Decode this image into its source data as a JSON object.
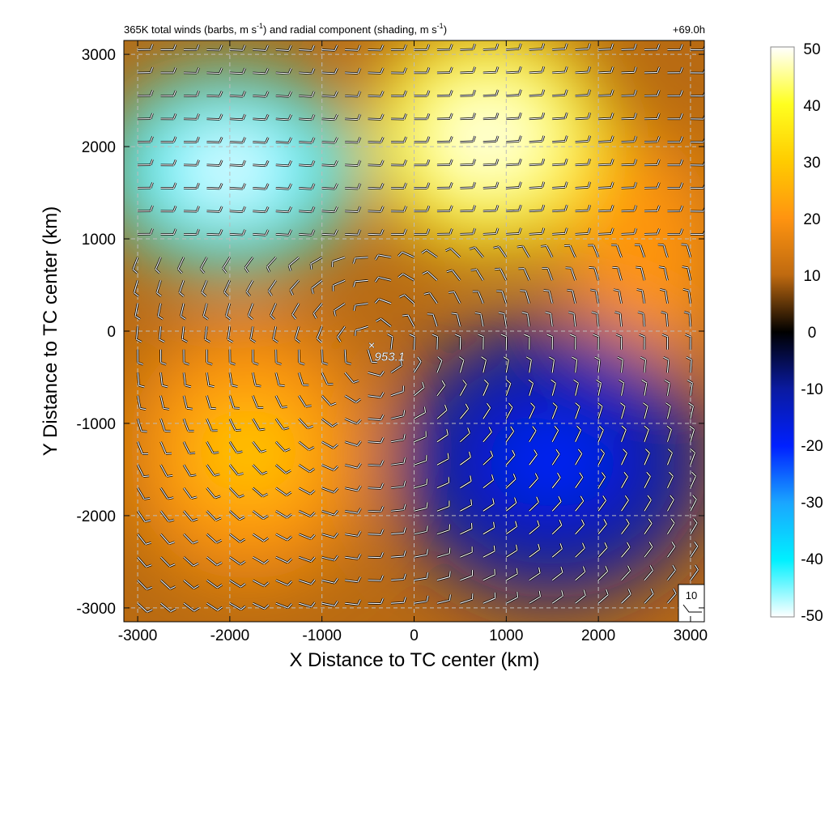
{
  "chart_data": {
    "type": "heatmap",
    "title_main": "365K total winds (barbs, m s",
    "title_unit_exp": "-1",
    "title_mid": ") and radial component (shading, m s",
    "title_end": ")",
    "time_label": "+69.0h",
    "xlabel": "X Distance to TC center (km)",
    "ylabel": "Y Distance to TC center (km)",
    "xlim": [
      -3150,
      3150
    ],
    "ylim": [
      -3150,
      3150
    ],
    "xticks": [
      -3000,
      -2000,
      -1000,
      0,
      1000,
      2000,
      3000
    ],
    "yticks": [
      -3000,
      -2000,
      -1000,
      0,
      1000,
      2000,
      3000
    ],
    "xtick_labels": [
      "-3000",
      "-2000",
      "-1000",
      "0",
      "1000",
      "2000",
      "3000"
    ],
    "ytick_labels": [
      "-3000",
      "-2000",
      "-1000",
      "0",
      "1000",
      "2000",
      "3000"
    ],
    "grid": true,
    "center_marker": {
      "symbol": "×",
      "label": "953.1",
      "x": -430,
      "y": -180
    },
    "reference_barb_label": "10",
    "colorbar": {
      "min": -50,
      "max": 50,
      "ticks": [
        50,
        40,
        30,
        20,
        10,
        0,
        -10,
        -20,
        -30,
        -40,
        -50
      ],
      "tick_labels": [
        "50",
        "40",
        "30",
        "20",
        "10",
        "0",
        "-10",
        "-20",
        "-30",
        "-40",
        "-50"
      ],
      "stops": [
        {
          "value": 50,
          "color": "#ffffff"
        },
        {
          "value": 40,
          "color": "#ffff20"
        },
        {
          "value": 30,
          "color": "#ffcc00"
        },
        {
          "value": 20,
          "color": "#ff9410"
        },
        {
          "value": 10,
          "color": "#bf6a10"
        },
        {
          "value": 0,
          "color": "#000000"
        },
        {
          "value": -10,
          "color": "#0a1aa0"
        },
        {
          "value": -20,
          "color": "#0020ff"
        },
        {
          "value": -30,
          "color": "#1aa6ff"
        },
        {
          "value": -40,
          "color": "#00f0ff"
        },
        {
          "value": -50,
          "color": "#ffffff"
        }
      ]
    },
    "radial_wind_regions": [
      {
        "name": "northwest-inflow",
        "x": -2000,
        "y": 1750,
        "value": -45
      },
      {
        "name": "north-outflow",
        "x": 800,
        "y": 2100,
        "value": 38
      },
      {
        "name": "northeast-outflow",
        "x": 2500,
        "y": 800,
        "value": 15
      },
      {
        "name": "west-outflow",
        "x": -1800,
        "y": -1300,
        "value": 18
      },
      {
        "name": "southeast-inflow",
        "x": 1500,
        "y": -1400,
        "value": -15
      }
    ]
  }
}
